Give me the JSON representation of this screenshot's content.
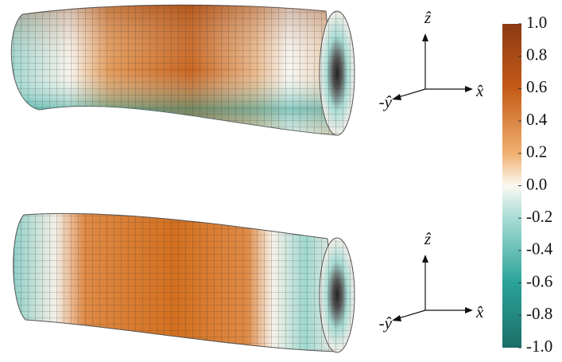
{
  "colorbar": {
    "lim": [
      -1,
      1
    ],
    "ticks": [
      {
        "value": 1,
        "label": "1.0"
      },
      0.8,
      0.6,
      0.4,
      0.2,
      {
        "value": 0,
        "label": "0.0"
      },
      -0.2,
      -0.4,
      -0.6,
      -0.8,
      {
        "value": -1,
        "label": "-1.0"
      }
    ]
  },
  "panels": [
    {
      "axes": {
        "z": "ẑ",
        "x": "x̂",
        "y": "-ŷ"
      }
    },
    {
      "axes": {
        "z": "ẑ",
        "x": "x̂",
        "y": "-ŷ"
      }
    }
  ]
}
